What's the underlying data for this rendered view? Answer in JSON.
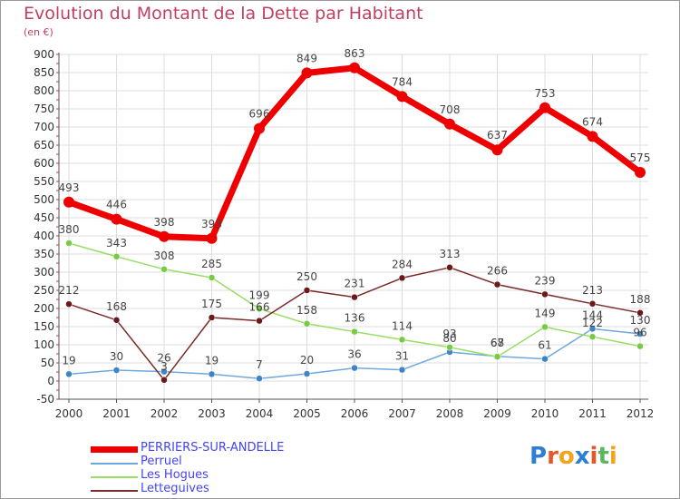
{
  "title": "Evolution du Montant de la Dette par Habitant",
  "subtitle": "(en €)",
  "logo": {
    "text": "Proxiti",
    "letters": [
      "P",
      "r",
      "o",
      "x",
      "i",
      "t",
      "i"
    ],
    "colors": [
      "#2d7fd0",
      "#e8562a",
      "#f2a41c",
      "#2d7fd0",
      "#e8562a",
      "#5cb85c",
      "#f2a41c"
    ]
  },
  "chart_data": {
    "type": "line",
    "categories": [
      "2000",
      "2001",
      "2002",
      "2003",
      "2004",
      "2005",
      "2006",
      "2007",
      "2008",
      "2009",
      "2010",
      "2011",
      "2012"
    ],
    "ylim": [
      -50,
      900
    ],
    "yticks": [
      -50,
      0,
      50,
      100,
      150,
      200,
      250,
      300,
      350,
      400,
      450,
      500,
      550,
      600,
      650,
      700,
      750,
      800,
      850,
      900
    ],
    "grid": true,
    "legend_position": "bottom-left",
    "series": [
      {
        "name": "PERRIERS-SUR-ANDELLE",
        "color": "#ee0000",
        "marker": "#ee0000",
        "labelColor": "#444444",
        "values": [
          493,
          446,
          398,
          393,
          696,
          849,
          863,
          784,
          708,
          637,
          753,
          674,
          575
        ]
      },
      {
        "name": "Perruel",
        "color": "#6fa8dc",
        "marker": "#3d85c6",
        "labelColor": "#444444",
        "values": [
          19,
          30,
          26,
          19,
          7,
          20,
          36,
          31,
          80,
          68,
          61,
          144,
          130
        ]
      },
      {
        "name": "Les Hogues",
        "color": "#99dd66",
        "marker": "#77cc44",
        "labelColor": "#444444",
        "values": [
          380,
          343,
          308,
          285,
          199,
          158,
          136,
          114,
          93,
          67,
          149,
          122,
          96
        ]
      },
      {
        "name": "Letteguives",
        "color": "#7a2a2a",
        "marker": "#6a1a1a",
        "labelColor": "#444444",
        "values": [
          212,
          168,
          3,
          175,
          166,
          250,
          231,
          284,
          313,
          266,
          239,
          213,
          188
        ]
      }
    ]
  }
}
